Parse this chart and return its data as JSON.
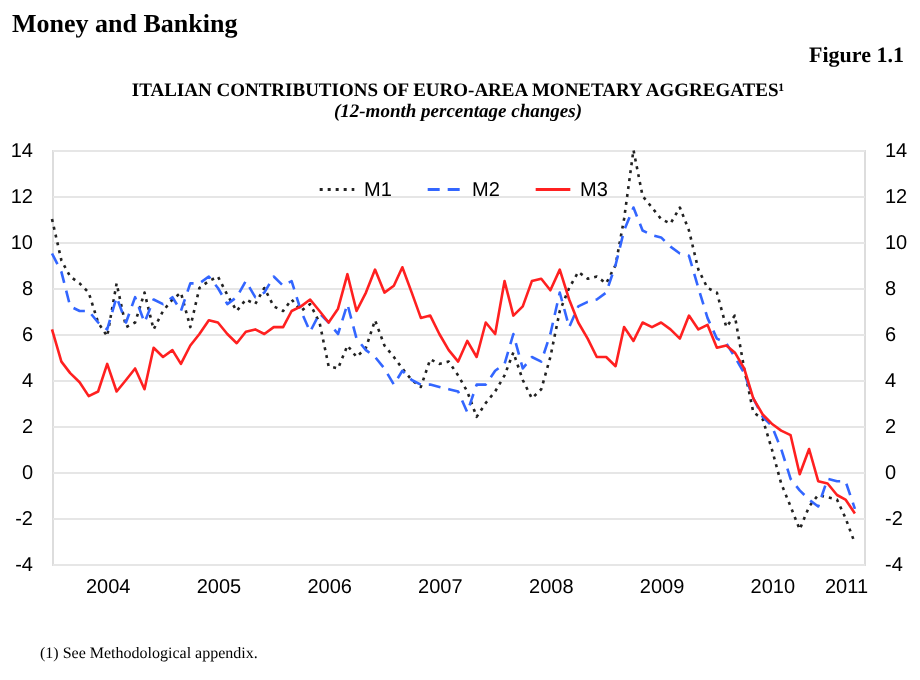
{
  "chart_data": {
    "type": "line",
    "title": "ITALIAN CONTRIBUTIONS OF EURO-AREA MONETARY AGGREGATES¹",
    "subtitle": "(12-month percentage changes)",
    "annotations": [
      "Money and Banking",
      "Figure 1.1",
      "(1) See Methodological appendix."
    ],
    "x": [
      "2004-01",
      "2004-02",
      "2004-03",
      "2004-04",
      "2004-05",
      "2004-06",
      "2004-07",
      "2004-08",
      "2004-09",
      "2004-10",
      "2004-11",
      "2004-12",
      "2005-01",
      "2005-02",
      "2005-03",
      "2005-04",
      "2005-05",
      "2005-06",
      "2005-07",
      "2005-08",
      "2005-09",
      "2005-10",
      "2005-11",
      "2005-12",
      "2006-01",
      "2006-02",
      "2006-03",
      "2006-04",
      "2006-05",
      "2006-06",
      "2006-07",
      "2006-08",
      "2006-09",
      "2006-10",
      "2006-11",
      "2006-12",
      "2007-01",
      "2007-02",
      "2007-03",
      "2007-04",
      "2007-05",
      "2007-06",
      "2007-07",
      "2007-08",
      "2007-09",
      "2007-10",
      "2007-11",
      "2007-12",
      "2008-01",
      "2008-02",
      "2008-03",
      "2008-04",
      "2008-05",
      "2008-06",
      "2008-07",
      "2008-08",
      "2008-09",
      "2008-10",
      "2008-11",
      "2008-12",
      "2009-01",
      "2009-02",
      "2009-03",
      "2009-04",
      "2009-05",
      "2009-06",
      "2009-07",
      "2009-08",
      "2009-09",
      "2009-10",
      "2009-11",
      "2009-12",
      "2010-01",
      "2010-02",
      "2010-03",
      "2010-04",
      "2010-05",
      "2010-06",
      "2010-07",
      "2010-08",
      "2010-09",
      "2010-10",
      "2010-11",
      "2010-12",
      "2011-01",
      "2011-02",
      "2011-03",
      "2011-04"
    ],
    "series": [
      {
        "name": "M1",
        "color": "#222222",
        "line_style": "dotted",
        "values": [
          11.0,
          9.2,
          8.5,
          8.2,
          7.8,
          6.5,
          5.9,
          8.2,
          6.3,
          6.5,
          7.8,
          6.2,
          7.0,
          7.5,
          7.8,
          6.3,
          8.0,
          8.3,
          8.5,
          7.7,
          7.0,
          7.5,
          7.3,
          8.0,
          7.2,
          7.0,
          7.5,
          7.0,
          7.3,
          6.5,
          4.6,
          4.5,
          5.5,
          5.0,
          5.4,
          6.6,
          5.5,
          5.0,
          4.5,
          4.0,
          3.7,
          4.9,
          4.7,
          4.8,
          4.2,
          3.5,
          2.4,
          3.0,
          3.5,
          4.2,
          5.2,
          4.0,
          3.2,
          3.6,
          5.0,
          7.0,
          8.0,
          8.7,
          8.4,
          8.5,
          8.2,
          9.0,
          11.0,
          14.0,
          12.0,
          11.5,
          11.0,
          10.8,
          11.5,
          10.5,
          8.8,
          8.0,
          7.8,
          6.3,
          6.8,
          4.5,
          2.6,
          2.3,
          1.0,
          -0.5,
          -1.5,
          -2.5,
          -1.5,
          -1.0,
          -1.1,
          -1.2,
          -2.0,
          -3.1
        ]
      },
      {
        "name": "M2",
        "color": "#3366ff",
        "line_style": "dashed",
        "values": [
          9.5,
          8.7,
          7.2,
          7.0,
          7.0,
          6.5,
          6.2,
          7.6,
          6.5,
          7.6,
          6.5,
          7.5,
          7.3,
          7.6,
          7.0,
          8.2,
          8.2,
          8.5,
          8.0,
          7.3,
          7.6,
          8.3,
          7.6,
          7.8,
          8.5,
          8.1,
          8.3,
          7.0,
          6.1,
          6.9,
          6.5,
          6.0,
          7.3,
          5.8,
          5.3,
          5.0,
          4.5,
          3.8,
          4.4,
          4.0,
          3.8,
          3.8,
          3.7,
          3.6,
          3.5,
          2.6,
          3.8,
          3.8,
          4.4,
          4.7,
          6.0,
          4.5,
          5.0,
          4.8,
          6.0,
          7.8,
          6.3,
          7.2,
          7.4,
          7.5,
          7.8,
          9.0,
          10.5,
          11.5,
          10.5,
          10.3,
          10.2,
          9.8,
          9.5,
          9.4,
          8.0,
          6.7,
          5.8,
          5.6,
          5.0,
          4.3,
          3.2,
          2.4,
          2.0,
          1.0,
          -0.3,
          -0.8,
          -1.2,
          -1.5,
          -0.3,
          -0.4,
          -0.4,
          -1.6
        ]
      },
      {
        "name": "M3",
        "color": "#ff2020",
        "line_style": "solid",
        "values": [
          6.2,
          4.8,
          4.3,
          3.9,
          3.3,
          3.5,
          4.7,
          3.5,
          4.0,
          4.5,
          3.6,
          5.4,
          5.0,
          5.3,
          4.7,
          5.5,
          6.0,
          6.6,
          6.5,
          6.0,
          5.6,
          6.1,
          6.2,
          6.0,
          6.3,
          6.3,
          7.0,
          7.2,
          7.5,
          7.0,
          6.5,
          7.1,
          8.6,
          7.0,
          7.8,
          8.8,
          7.8,
          8.1,
          8.9,
          7.8,
          6.7,
          6.8,
          6.0,
          5.3,
          4.8,
          5.7,
          5.0,
          6.5,
          6.0,
          8.3,
          6.8,
          7.2,
          8.3,
          8.4,
          7.9,
          8.8,
          7.5,
          6.5,
          5.8,
          5.0,
          5.0,
          4.6,
          6.3,
          5.7,
          6.5,
          6.3,
          6.5,
          6.2,
          5.8,
          6.8,
          6.2,
          6.4,
          5.4,
          5.5,
          5.2,
          4.5,
          3.2,
          2.5,
          2.1,
          1.8,
          1.6,
          -0.1,
          1.0,
          -0.4,
          -0.5,
          -1.0,
          -1.2,
          -1.8
        ]
      }
    ],
    "xlim": [
      "2004-01",
      "2011-05"
    ],
    "xticks": [
      {
        "value": "2004-07",
        "label": "2004"
      },
      {
        "value": "2005-07",
        "label": "2005"
      },
      {
        "value": "2006-07",
        "label": "2006"
      },
      {
        "value": "2007-07",
        "label": "2007"
      },
      {
        "value": "2008-07",
        "label": "2008"
      },
      {
        "value": "2009-07",
        "label": "2009"
      },
      {
        "value": "2010-07",
        "label": "2010"
      },
      {
        "value": "2011-03",
        "label": "2011"
      }
    ],
    "ylim": [
      -4,
      14
    ],
    "yticks": [
      -4,
      -2,
      0,
      2,
      4,
      6,
      8,
      10,
      12,
      14
    ],
    "y2lim": [
      -4,
      14
    ],
    "y2ticks": [
      -4,
      -2,
      0,
      2,
      4,
      6,
      8,
      10,
      12,
      14
    ],
    "grid": "y",
    "legend": "top"
  }
}
